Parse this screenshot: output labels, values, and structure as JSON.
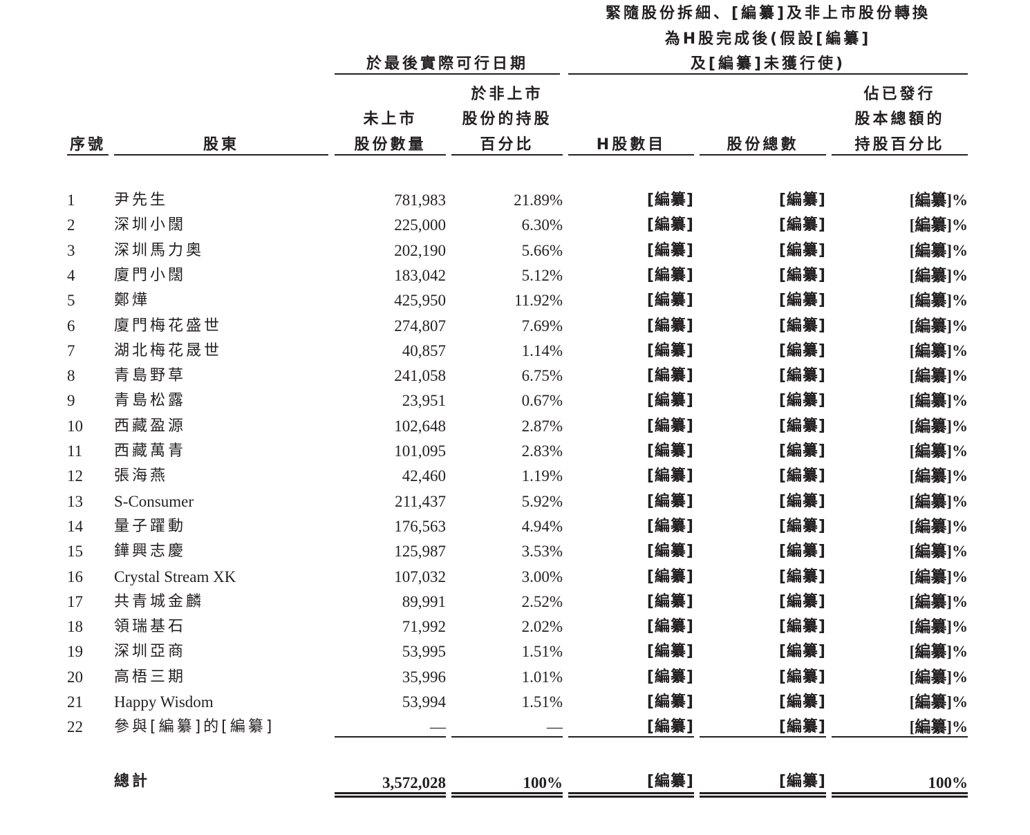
{
  "header": {
    "group1": "於最後實際可行日期",
    "group2_lines": [
      "緊隨股份拆細、[編纂]及非上市股份轉換",
      "為H股完成後(假設[編纂]",
      "及[編纂]未獲行使)"
    ],
    "columns": {
      "no": "序號",
      "holder": "股東",
      "unlisted_shares": [
        "未上市",
        "股份數量"
      ],
      "unlisted_pct": [
        "於非上市",
        "股份的持股",
        "百分比"
      ],
      "h_shares": "H股數目",
      "total_shares": "股份總數",
      "issued_pct": [
        "佔已發行",
        "股本總額的",
        "持股百分比"
      ]
    }
  },
  "rows": [
    {
      "no": "1",
      "holder": "尹先生",
      "shares": "781,983",
      "pct": "21.89%",
      "h": "[編纂]",
      "total": "[編纂]",
      "issued": "[編纂]%"
    },
    {
      "no": "2",
      "holder": "深圳小闊",
      "shares": "225,000",
      "pct": "6.30%",
      "h": "[編纂]",
      "total": "[編纂]",
      "issued": "[編纂]%"
    },
    {
      "no": "3",
      "holder": "深圳馬力奧",
      "shares": "202,190",
      "pct": "5.66%",
      "h": "[編纂]",
      "total": "[編纂]",
      "issued": "[編纂]%"
    },
    {
      "no": "4",
      "holder": "廈門小闊",
      "shares": "183,042",
      "pct": "5.12%",
      "h": "[編纂]",
      "total": "[編纂]",
      "issued": "[編纂]%"
    },
    {
      "no": "5",
      "holder": "鄭燁",
      "shares": "425,950",
      "pct": "11.92%",
      "h": "[編纂]",
      "total": "[編纂]",
      "issued": "[編纂]%"
    },
    {
      "no": "6",
      "holder": "廈門梅花盛世",
      "shares": "274,807",
      "pct": "7.69%",
      "h": "[編纂]",
      "total": "[編纂]",
      "issued": "[編纂]%"
    },
    {
      "no": "7",
      "holder": "湖北梅花晟世",
      "shares": "40,857",
      "pct": "1.14%",
      "h": "[編纂]",
      "total": "[編纂]",
      "issued": "[編纂]%"
    },
    {
      "no": "8",
      "holder": "青島野草",
      "shares": "241,058",
      "pct": "6.75%",
      "h": "[編纂]",
      "total": "[編纂]",
      "issued": "[編纂]%"
    },
    {
      "no": "9",
      "holder": "青島松露",
      "shares": "23,951",
      "pct": "0.67%",
      "h": "[編纂]",
      "total": "[編纂]",
      "issued": "[編纂]%"
    },
    {
      "no": "10",
      "holder": "西藏盈源",
      "shares": "102,648",
      "pct": "2.87%",
      "h": "[編纂]",
      "total": "[編纂]",
      "issued": "[編纂]%"
    },
    {
      "no": "11",
      "holder": "西藏萬青",
      "shares": "101,095",
      "pct": "2.83%",
      "h": "[編纂]",
      "total": "[編纂]",
      "issued": "[編纂]%"
    },
    {
      "no": "12",
      "holder": "張海燕",
      "shares": "42,460",
      "pct": "1.19%",
      "h": "[編纂]",
      "total": "[編纂]",
      "issued": "[編纂]%"
    },
    {
      "no": "13",
      "holder": "S-Consumer",
      "shares": "211,437",
      "pct": "5.92%",
      "h": "[編纂]",
      "total": "[編纂]",
      "issued": "[編纂]%"
    },
    {
      "no": "14",
      "holder": "量子躍動",
      "shares": "176,563",
      "pct": "4.94%",
      "h": "[編纂]",
      "total": "[編纂]",
      "issued": "[編纂]%"
    },
    {
      "no": "15",
      "holder": "鏵興志慶",
      "shares": "125,987",
      "pct": "3.53%",
      "h": "[編纂]",
      "total": "[編纂]",
      "issued": "[編纂]%"
    },
    {
      "no": "16",
      "holder": "Crystal Stream XK",
      "shares": "107,032",
      "pct": "3.00%",
      "h": "[編纂]",
      "total": "[編纂]",
      "issued": "[編纂]%"
    },
    {
      "no": "17",
      "holder": "共青城金麟",
      "shares": "89,991",
      "pct": "2.52%",
      "h": "[編纂]",
      "total": "[編纂]",
      "issued": "[編纂]%"
    },
    {
      "no": "18",
      "holder": "領瑞基石",
      "shares": "71,992",
      "pct": "2.02%",
      "h": "[編纂]",
      "total": "[編纂]",
      "issued": "[編纂]%"
    },
    {
      "no": "19",
      "holder": "深圳亞商",
      "shares": "53,995",
      "pct": "1.51%",
      "h": "[編纂]",
      "total": "[編纂]",
      "issued": "[編纂]%"
    },
    {
      "no": "20",
      "holder": "高梧三期",
      "shares": "35,996",
      "pct": "1.01%",
      "h": "[編纂]",
      "total": "[編纂]",
      "issued": "[編纂]%"
    },
    {
      "no": "21",
      "holder": "Happy Wisdom",
      "shares": "53,994",
      "pct": "1.51%",
      "h": "[編纂]",
      "total": "[編纂]",
      "issued": "[編纂]%"
    },
    {
      "no": "22",
      "holder": "參與[編纂]的[編纂]",
      "shares": "—",
      "pct": "—",
      "h": "[編纂]",
      "total": "[編纂]",
      "issued": "[編纂]%"
    }
  ],
  "total": {
    "label": "總計",
    "shares": "3,572,028",
    "pct": "100%",
    "h": "[編纂]",
    "total": "[編纂]",
    "issued": "100%"
  }
}
